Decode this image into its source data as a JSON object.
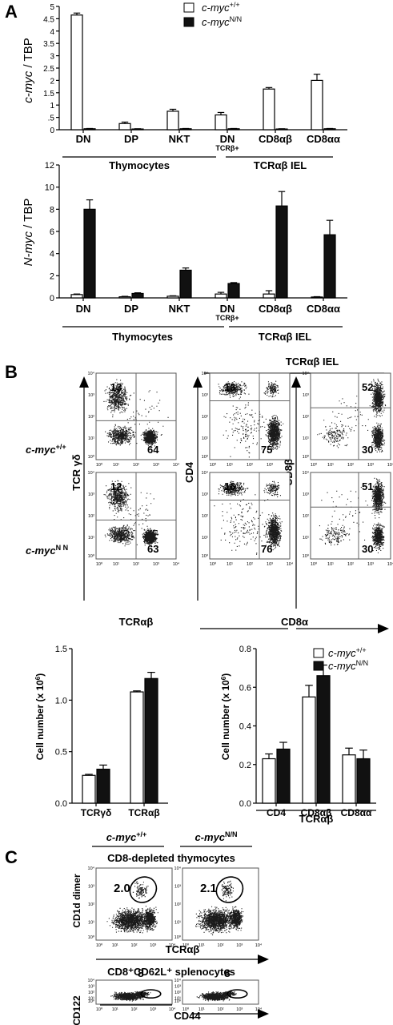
{
  "panels": {
    "A": {
      "label": "A",
      "legend": [
        {
          "prefix": "c-myc",
          "sup": "+/+",
          "fill": "#ffffff"
        },
        {
          "prefix": "c-myc",
          "sup": "N/N",
          "fill": "#111111"
        }
      ],
      "groups": {
        "thymocytes": "Thymocytes",
        "iel": "TCRαβ IEL"
      }
    },
    "B": {
      "label": "B",
      "header": "TCRαβ IEL",
      "rows": [
        {
          "prefix": "c-myc",
          "sup": "+/+"
        },
        {
          "prefix": "c-myc",
          "sup": "N N"
        }
      ],
      "axes": {
        "tcrgd": "TCR γδ",
        "tcrab": "TCRαβ",
        "cd4": "CD4",
        "cd8b": "CD8β",
        "cd8a": "CD8α"
      },
      "quadrants": [
        {
          "row": 0,
          "plot": 0,
          "tl": "13",
          "br": "64",
          "tr": "",
          "bl": ""
        },
        {
          "row": 0,
          "plot": 1,
          "tl": "16",
          "br": "75",
          "tr": "",
          "bl": ""
        },
        {
          "row": 0,
          "plot": 2,
          "tl": "",
          "br": "30",
          "tr": "52",
          "bl": ""
        },
        {
          "row": 1,
          "plot": 0,
          "tl": "12",
          "br": "63",
          "tr": "",
          "bl": ""
        },
        {
          "row": 1,
          "plot": 1,
          "tl": "16",
          "br": "76",
          "tr": "",
          "bl": ""
        },
        {
          "row": 1,
          "plot": 2,
          "tl": "",
          "br": "30",
          "tr": "51",
          "bl": ""
        }
      ],
      "group_label": "TCRαβ"
    },
    "C": {
      "label": "C",
      "columns": [
        {
          "prefix": "c-myc",
          "sup": "+/+"
        },
        {
          "prefix": "c-myc",
          "sup": "N/N"
        }
      ],
      "row1": {
        "title": "CD8-depleted thymocytes",
        "ylabel": "CD1d dimer",
        "xlabel": "TCRαβ",
        "values": [
          "2.0",
          "2.1"
        ]
      },
      "row2": {
        "title": "CD8⁺CD62L⁺ splenocytes",
        "ylabel": "CD122",
        "xlabel": "CD44",
        "values": [
          "8",
          "8"
        ]
      }
    }
  },
  "chart_data": [
    {
      "type": "bar",
      "title": "",
      "ylabel_prefix": "c-myc",
      "ylabel_suffix": " / TBP",
      "xlabel": "",
      "categories": [
        "DN",
        "DP",
        "NKT",
        "DN",
        "CD8αβ",
        "CD8αα"
      ],
      "category_sub": [
        "",
        "",
        "",
        "TCRβ+",
        "",
        ""
      ],
      "ylim": [
        0,
        5
      ],
      "yticks": [
        0,
        0.5,
        1,
        1.5,
        2,
        2.5,
        3,
        3.5,
        4,
        4.5,
        5
      ],
      "ytick_labels": [
        "0",
        ".5",
        "1",
        "1.5",
        "2",
        "2.5",
        "3",
        "3.5",
        "4",
        "4.5",
        "5"
      ],
      "series": [
        {
          "name": "c-myc+/+",
          "values": [
            4.65,
            0.25,
            0.75,
            0.6,
            1.65,
            2.0
          ],
          "errors": [
            0.08,
            0.06,
            0.08,
            0.1,
            0.06,
            0.25
          ]
        },
        {
          "name": "c-mycN/N",
          "values": [
            0.04,
            0.03,
            0.04,
            0.04,
            0.03,
            0.04
          ],
          "errors": [
            0.01,
            0.01,
            0.01,
            0.01,
            0.01,
            0.01
          ]
        }
      ]
    },
    {
      "type": "bar",
      "title": "",
      "ylabel_prefix": "N-myc",
      "ylabel_suffix": " / TBP",
      "xlabel": "",
      "categories": [
        "DN",
        "DP",
        "NKT",
        "DN",
        "CD8αβ",
        "CD8αα"
      ],
      "category_sub": [
        "",
        "",
        "",
        "TCRβ+",
        "",
        ""
      ],
      "ylim": [
        0,
        12
      ],
      "yticks": [
        0,
        2,
        4,
        6,
        8,
        10,
        12
      ],
      "series": [
        {
          "name": "c-myc+/+",
          "values": [
            0.3,
            0.1,
            0.15,
            0.35,
            0.35,
            0.08
          ],
          "errors": [
            0.05,
            0.04,
            0.04,
            0.15,
            0.3,
            0.03
          ]
        },
        {
          "name": "c-mycN/N",
          "values": [
            8.0,
            0.4,
            2.5,
            1.3,
            8.3,
            5.7
          ],
          "errors": [
            0.85,
            0.06,
            0.2,
            0.08,
            1.3,
            1.3
          ]
        }
      ]
    },
    {
      "type": "bar",
      "title": "",
      "ylabel": "Cell number (x 10",
      "ylabel_sup": "6",
      "xlabel": "",
      "categories": [
        "TCRγδ",
        "TCRαβ"
      ],
      "ylim": [
        0,
        1.5
      ],
      "yticks": [
        0,
        0.5,
        1.0,
        1.5
      ],
      "ytick_labels": [
        "0.0",
        "0.5",
        "1.0",
        "1.5"
      ],
      "series": [
        {
          "name": "c-myc+/+",
          "values": [
            0.27,
            1.08
          ],
          "errors": [
            0.01,
            0.01
          ]
        },
        {
          "name": "c-mycN/N",
          "values": [
            0.33,
            1.21
          ],
          "errors": [
            0.04,
            0.06
          ]
        }
      ]
    },
    {
      "type": "bar",
      "title": "",
      "ylabel": "Cell number (x 10",
      "ylabel_sup": "6",
      "xlabel": "",
      "categories": [
        "CD4",
        "CD8αβ",
        "CD8αα"
      ],
      "ylim": [
        0,
        0.8
      ],
      "yticks": [
        0,
        0.2,
        0.4,
        0.6,
        0.8
      ],
      "ytick_labels": [
        "0.0",
        "0.2",
        "0.4",
        "0.6",
        "0.8"
      ],
      "series": [
        {
          "name": "c-myc+/+",
          "values": [
            0.23,
            0.55,
            0.25
          ],
          "errors": [
            0.025,
            0.06,
            0.035
          ]
        },
        {
          "name": "c-mycN/N",
          "values": [
            0.28,
            0.66,
            0.23
          ],
          "errors": [
            0.035,
            0.055,
            0.045
          ]
        }
      ]
    }
  ]
}
